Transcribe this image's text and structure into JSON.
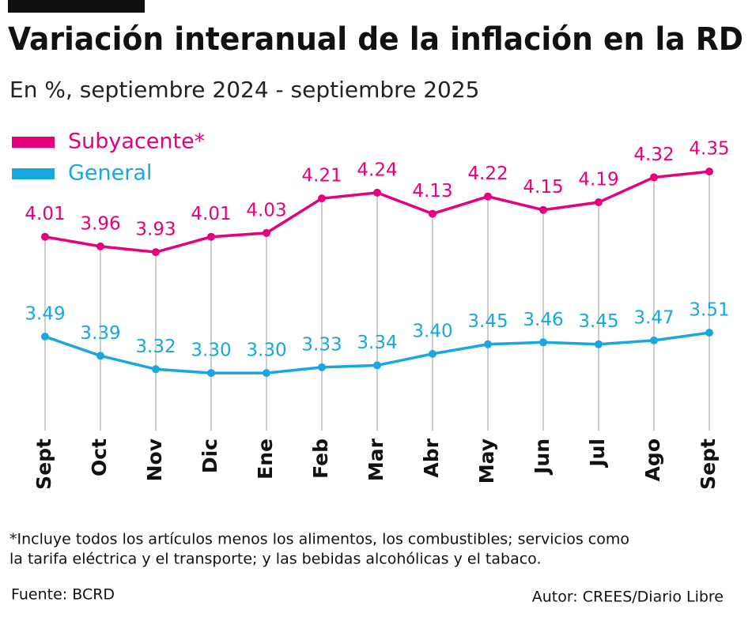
{
  "chart_data": {
    "type": "line",
    "title": "Variación interanual de la inflación en la RD",
    "subtitle": "En %, septiembre 2024 - septiembre  2025",
    "categories": [
      "Sept",
      "Oct",
      "Nov",
      "Dic",
      "Ene",
      "Feb",
      "Mar",
      "Abr",
      "May",
      "Jun",
      "Jul",
      "Ago",
      "Sept"
    ],
    "series": [
      {
        "name": "Subyacente*",
        "color": "#e6007e",
        "values": [
          4.01,
          3.96,
          3.93,
          4.01,
          4.03,
          4.21,
          4.24,
          4.13,
          4.22,
          4.15,
          4.19,
          4.32,
          4.35
        ]
      },
      {
        "name": "General",
        "color": "#1aa7e0",
        "values": [
          3.49,
          3.39,
          3.32,
          3.3,
          3.3,
          3.33,
          3.34,
          3.4,
          3.45,
          3.46,
          3.45,
          3.47,
          3.51
        ],
        "value_labels": [
          "3.49",
          "3.39",
          "3.32",
          "3.30",
          "3.30",
          "3.33",
          "3.34",
          "3.40",
          "3.45",
          "3.46",
          "3.45",
          "3.47",
          "3.51"
        ]
      }
    ],
    "ylim": [
      3.0,
      4.4
    ],
    "footnote": [
      "*Incluye todos los artículos menos los alimentos, los combustibles; servicios como",
      "la tarifa eléctrica y el transporte; y las bebidas alcohólicas y el tabaco."
    ],
    "source": "Fuente: BCRD",
    "author": "Autor:  CREES/Diario Libre"
  }
}
